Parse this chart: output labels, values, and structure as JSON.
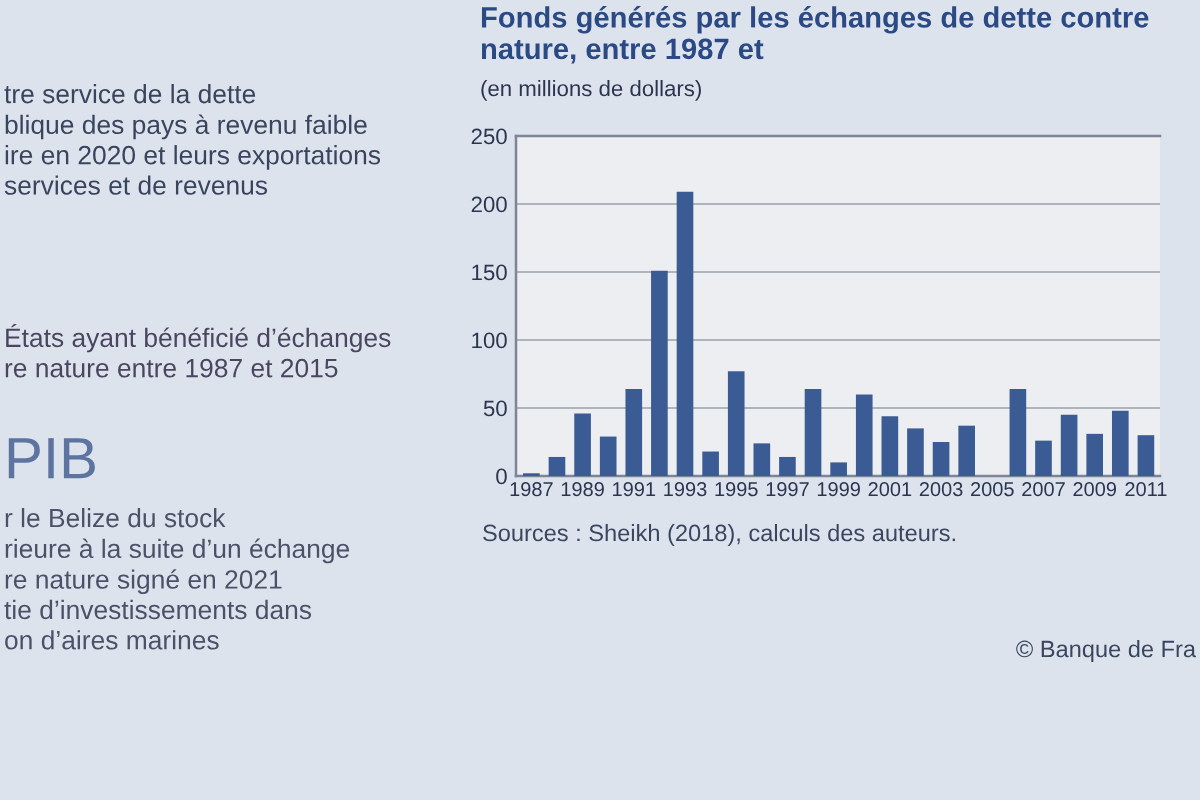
{
  "chart_data": {
    "type": "bar",
    "title": "Fonds générés par les échanges de dette contre nature, entre 1987 et",
    "subtitle": "(en millions de dollars)",
    "categories": [
      "1987",
      null,
      "1989",
      null,
      "1991",
      null,
      "1993",
      null,
      "1995",
      null,
      "1997",
      null,
      "1999",
      null,
      "2001",
      null,
      "2003",
      null,
      "2005",
      null,
      "2007",
      null,
      "2009",
      null,
      "2011"
    ],
    "values": [
      2,
      14,
      46,
      29,
      64,
      151,
      209,
      18,
      77,
      24,
      14,
      64,
      10,
      60,
      44,
      35,
      25,
      37,
      null,
      64,
      26,
      45,
      31,
      48,
      30
    ],
    "color": "#3b5b94",
    "ylim": [
      0,
      250
    ],
    "yticks": [
      0,
      50,
      100,
      150,
      200,
      250
    ],
    "grid": "y",
    "annotations": [
      "tre service de la dette\nblique des pays à revenu faible\nire en 2020 et leurs exportations\nservices et de revenus",
      "États ayant bénéficié d’échanges\nre nature entre 1987 et 2015",
      "PIB",
      "r le Belize du stock\nrieure à la suite d’un échange\nre nature signé en 2021\ntie d’investissements dans\non d’aires marines",
      "Sources : Sheikh (2018), calculs des auteurs.",
      "© Banque de Fra"
    ]
  }
}
